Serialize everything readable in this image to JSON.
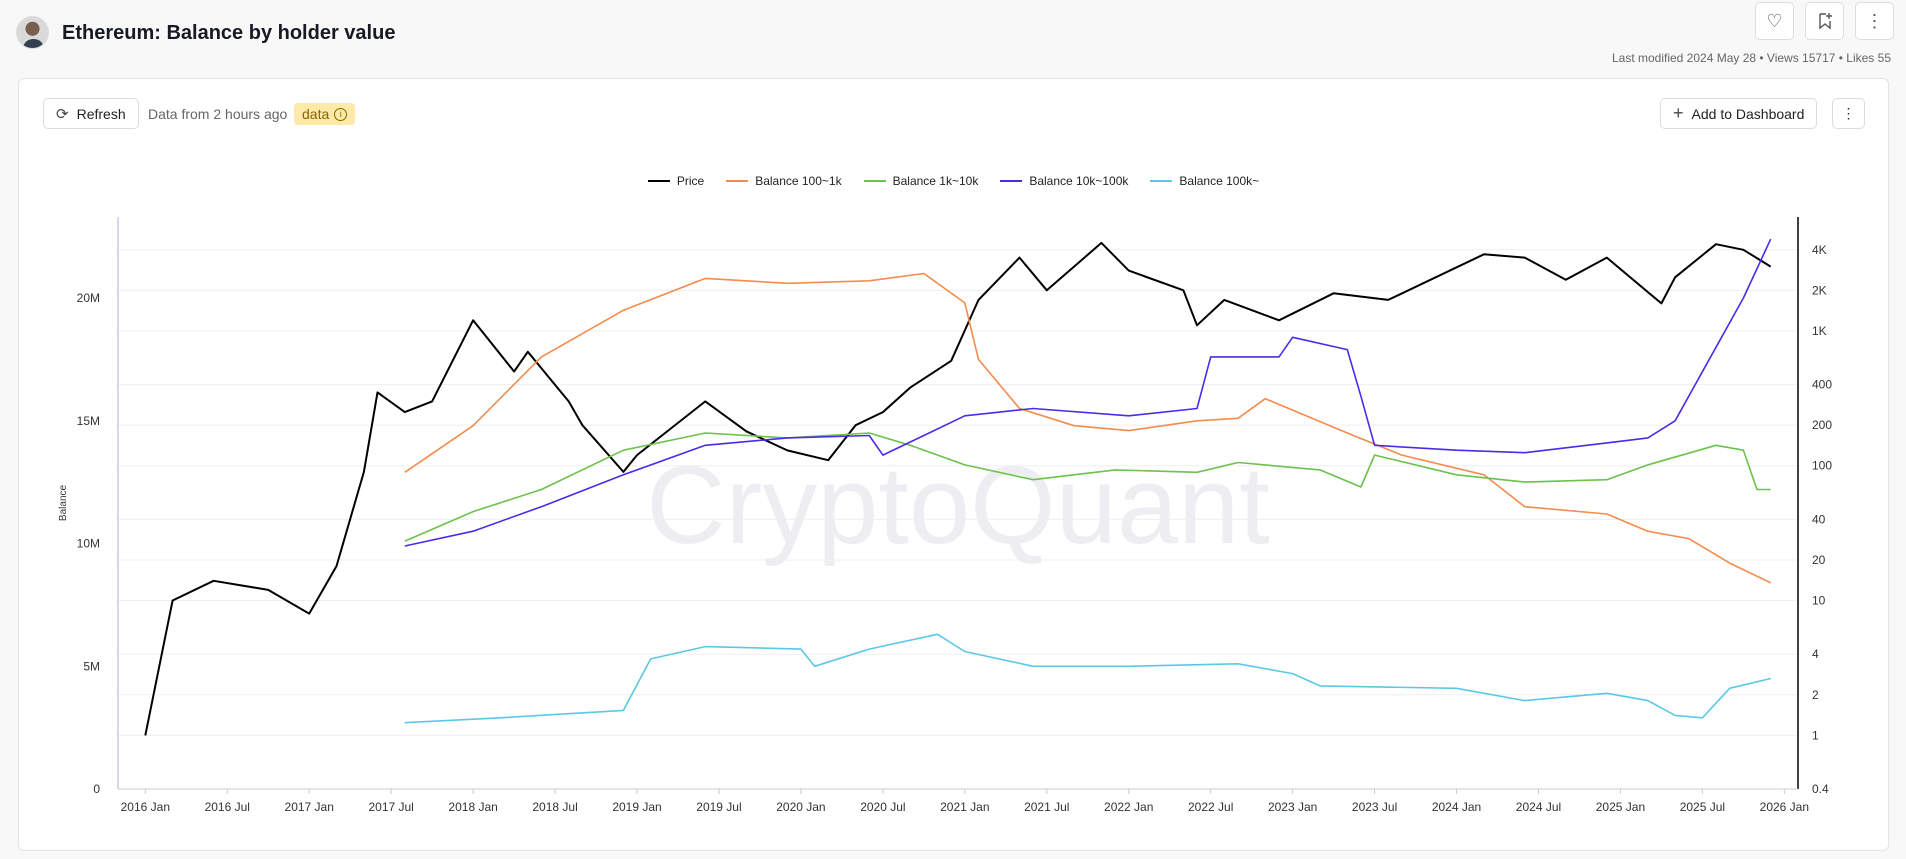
{
  "header": {
    "title": "Ethereum: Balance by holder value",
    "meta": "Last modified 2024 May 28 • Views 15717 • Likes 55",
    "like_icon": "heart-icon",
    "bookmark_icon": "bookmark-add-icon",
    "more_icon": "more-vertical-icon"
  },
  "toolbar": {
    "refresh_label": "Refresh",
    "data_from": "Data from 2 hours ago",
    "badge_label": "data",
    "add_dashboard_label": "Add to Dashboard"
  },
  "watermark": "CryptoQuant",
  "chart_data": {
    "type": "line",
    "ylabel": "Balance",
    "left_axis": {
      "ticks": [
        0,
        5000000,
        10000000,
        15000000,
        20000000
      ],
      "tick_labels": [
        "0",
        "5M",
        "10M",
        "15M",
        "20M"
      ],
      "ylim": [
        0,
        23300000
      ]
    },
    "right_axis": {
      "scale": "log",
      "ticks": [
        0.4,
        1,
        2,
        4,
        10,
        20,
        40,
        100,
        200,
        400,
        1000,
        2000,
        4000
      ],
      "tick_labels": [
        "0.4",
        "1",
        "2",
        "4",
        "10",
        "20",
        "40",
        "100",
        "200",
        "400",
        "1K",
        "2K",
        "4K"
      ],
      "ylim": [
        0.4,
        7000
      ]
    },
    "x_ticks": [
      "2016 Jan",
      "2016 Jul",
      "2017 Jan",
      "2017 Jul",
      "2018 Jan",
      "2018 Jul",
      "2019 Jan",
      "2019 Jul",
      "2020 Jan",
      "2020 Jul",
      "2021 Jan",
      "2021 Jul",
      "2022 Jan",
      "2022 Jul",
      "2023 Jan",
      "2023 Jul",
      "2024 Jan",
      "2024 Jul",
      "2025 Jan",
      "2025 Jul",
      "2026 Jan"
    ],
    "xlim": [
      "2015-11",
      "2026-02"
    ],
    "grid": true,
    "legend_placement": "top",
    "series": [
      {
        "name": "Price",
        "axis": "right",
        "color": "#000000",
        "x": [
          "2016-01",
          "2016-03",
          "2016-06",
          "2016-10",
          "2017-01",
          "2017-03",
          "2017-05",
          "2017-06",
          "2017-08",
          "2017-10",
          "2018-01",
          "2018-04",
          "2018-05",
          "2018-08",
          "2018-09",
          "2018-12",
          "2019-01",
          "2019-06",
          "2019-09",
          "2019-12",
          "2020-03",
          "2020-05",
          "2020-07",
          "2020-09",
          "2020-12",
          "2021-02",
          "2021-05",
          "2021-07",
          "2021-11",
          "2022-01",
          "2022-05",
          "2022-06",
          "2022-08",
          "2022-12",
          "2023-04",
          "2023-08",
          "2024-03",
          "2024-06",
          "2024-09",
          "2024-12",
          "2025-04",
          "2025-05",
          "2025-08",
          "2025-10",
          "2025-12"
        ],
        "values": [
          1,
          10,
          14,
          12,
          8,
          18,
          90,
          350,
          250,
          300,
          1200,
          500,
          700,
          300,
          200,
          90,
          120,
          300,
          180,
          130,
          110,
          200,
          250,
          380,
          600,
          1700,
          3500,
          2000,
          4500,
          2800,
          2000,
          1100,
          1700,
          1200,
          1900,
          1700,
          3700,
          3500,
          2400,
          3500,
          1600,
          2500,
          4400,
          4000,
          3000
        ]
      },
      {
        "name": "Balance 100~1k",
        "axis": "left",
        "color": "#f58b4c",
        "x": [
          "2017-08",
          "2018-01",
          "2018-06",
          "2018-12",
          "2019-06",
          "2019-12",
          "2020-06",
          "2020-10",
          "2021-01",
          "2021-02",
          "2021-05",
          "2021-09",
          "2022-01",
          "2022-06",
          "2022-09",
          "2022-11",
          "2023-05",
          "2023-09",
          "2024-03",
          "2024-06",
          "2024-12",
          "2025-03",
          "2025-06",
          "2025-09",
          "2025-12"
        ],
        "values": [
          12900000,
          14800000,
          17600000,
          19500000,
          20800000,
          20600000,
          20700000,
          21000000,
          19800000,
          17500000,
          15500000,
          14800000,
          14600000,
          15000000,
          15100000,
          15900000,
          14500000,
          13600000,
          12800000,
          11500000,
          11200000,
          10500000,
          10200000,
          9200000,
          8400000
        ]
      },
      {
        "name": "Balance 1k~10k",
        "axis": "left",
        "color": "#6cc24a",
        "x": [
          "2017-08",
          "2018-01",
          "2018-06",
          "2018-12",
          "2019-06",
          "2019-12",
          "2020-06",
          "2020-09",
          "2021-01",
          "2021-06",
          "2021-12",
          "2022-06",
          "2022-09",
          "2023-03",
          "2023-06",
          "2023-07",
          "2024-01",
          "2024-06",
          "2024-12",
          "2025-03",
          "2025-08",
          "2025-10",
          "2025-11",
          "2025-12"
        ],
        "values": [
          10100000,
          11300000,
          12200000,
          13800000,
          14500000,
          14300000,
          14500000,
          14000000,
          13200000,
          12600000,
          13000000,
          12900000,
          13300000,
          13000000,
          12300000,
          13600000,
          12800000,
          12500000,
          12600000,
          13200000,
          14000000,
          13800000,
          12200000,
          12200000
        ]
      },
      {
        "name": "Balance 10k~100k",
        "axis": "left",
        "color": "#4b2bea",
        "x": [
          "2017-08",
          "2018-01",
          "2018-06",
          "2018-12",
          "2019-06",
          "2019-12",
          "2020-06",
          "2020-07",
          "2020-10",
          "2021-01",
          "2021-06",
          "2022-01",
          "2022-06",
          "2022-07",
          "2022-12",
          "2023-01",
          "2023-05",
          "2023-06",
          "2023-07",
          "2024-01",
          "2024-06",
          "2024-12",
          "2025-03",
          "2025-05",
          "2025-07",
          "2025-10",
          "2025-12"
        ],
        "values": [
          9900000,
          10500000,
          11500000,
          12800000,
          14000000,
          14300000,
          14400000,
          13600000,
          14400000,
          15200000,
          15500000,
          15200000,
          15500000,
          17600000,
          17600000,
          18400000,
          17900000,
          16000000,
          14000000,
          13800000,
          13700000,
          14100000,
          14300000,
          15000000,
          17000000,
          20000000,
          22400000
        ]
      },
      {
        "name": "Balance 100k~",
        "axis": "left",
        "color": "#5bc8e6",
        "x": [
          "2017-08",
          "2018-03",
          "2018-12",
          "2019-02",
          "2019-06",
          "2020-01",
          "2020-02",
          "2020-06",
          "2020-11",
          "2021-01",
          "2021-06",
          "2022-01",
          "2022-09",
          "2023-01",
          "2023-03",
          "2024-01",
          "2024-06",
          "2024-12",
          "2025-03",
          "2025-05",
          "2025-07",
          "2025-09",
          "2025-12"
        ],
        "values": [
          2700000,
          2900000,
          3200000,
          5300000,
          5800000,
          5700000,
          5000000,
          5700000,
          6300000,
          5600000,
          5000000,
          5000000,
          5100000,
          4700000,
          4200000,
          4100000,
          3600000,
          3900000,
          3600000,
          3000000,
          2900000,
          4100000,
          4500000
        ]
      }
    ]
  }
}
